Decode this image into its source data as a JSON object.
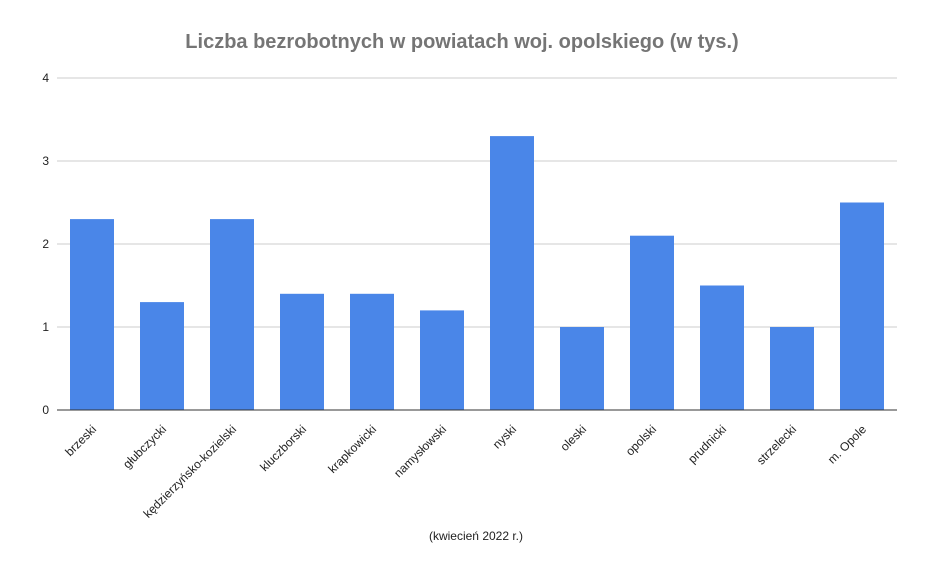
{
  "chart_data": {
    "type": "bar",
    "title": "Liczba bezrobotnych w powiatach woj. opolskiego (w tys.)",
    "xlabel": "(kwiecień 2022 r.)",
    "ylabel": "",
    "categories": [
      "brzeski",
      "głubczycki",
      "kędzierzyńsko-kozielski",
      "kluczborski",
      "krapkowicki",
      "namysłowski",
      "nyski",
      "oleski",
      "opolski",
      "prudnicki",
      "strzelecki",
      "m. Opole"
    ],
    "values": [
      2.3,
      1.3,
      2.3,
      1.4,
      1.4,
      1.2,
      3.3,
      1.0,
      2.1,
      1.5,
      1.0,
      2.5
    ],
    "ylim": [
      0,
      4
    ],
    "yticks": [
      "0",
      "1",
      "2",
      "3",
      "4"
    ],
    "grid": true,
    "legend": "none",
    "bar_color": "#4a86e8"
  }
}
